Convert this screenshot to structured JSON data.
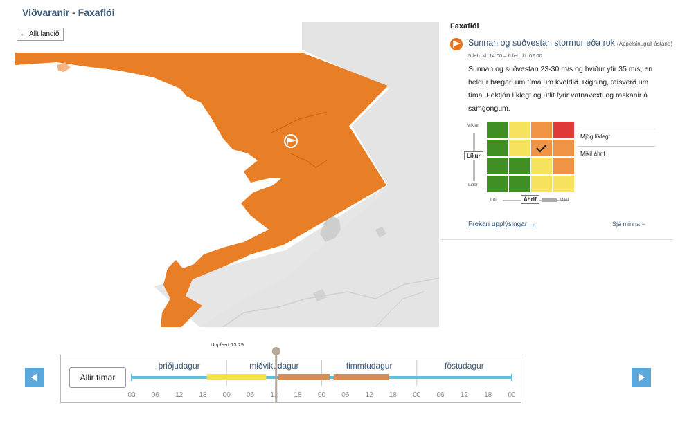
{
  "page": {
    "title": "Viðvaranir - Faxaflói"
  },
  "map": {
    "back_label": "Allt landið",
    "fill_color": "#e87e26"
  },
  "panel": {
    "region": "Faxaflói",
    "warning": {
      "title": "Sunnan og suðvestan stormur eða rok",
      "level": "(Appelsínugult ástand)",
      "time": "5 feb. kl. 14:00 – 6 feb. kl. 02:00",
      "text": "Sunnan og suðvestan 23-30 m/s og hviður yfir 35 m/s, en heldur hægari um tíma um kvöldið. Rigning, talsverð um tíma. Foktjón líklegt og útlit fyrir vatnavexti og raskanir á samgöngum.",
      "color": "#e8721c"
    },
    "matrix": {
      "likelihood_high": "Miklar",
      "likelihood_low": "Litlar",
      "likelihood_label": "Líkur",
      "impact_low": "Lítil",
      "impact_high": "Mikil",
      "impact_label": "Áhrif",
      "selected_likelihood": "Mjög líklegt",
      "selected_impact": "Mikil áhrif",
      "cells": [
        [
          "#3f8f22",
          "#f7e35f",
          "#ef9445",
          "#e03b3b"
        ],
        [
          "#3f8f22",
          "#f7e35f",
          "#ef9445",
          "#ef9445"
        ],
        [
          "#3f8f22",
          "#3f8f22",
          "#f7e35f",
          "#ef9445"
        ],
        [
          "#3f8f22",
          "#3f8f22",
          "#f7e35f",
          "#f7e35f"
        ]
      ]
    },
    "more_info": "Frekari upplýsingar",
    "see_less": "Sjá minna"
  },
  "timeline": {
    "updated": "Uppfært 13:29",
    "all_times": "Allir tímar",
    "days": [
      "þriðjudagur",
      "miðvikudagur",
      "fimmtudagur",
      "föstudagur"
    ],
    "hour_ticks": [
      "00",
      "06",
      "12",
      "18",
      "00",
      "06",
      "12",
      "18",
      "00",
      "06",
      "12",
      "18",
      "00",
      "06",
      "12",
      "18",
      "00"
    ],
    "colors": {
      "base": "#5bbfe0",
      "yellow": "#f2e34a",
      "orange": "#d98d52"
    }
  }
}
